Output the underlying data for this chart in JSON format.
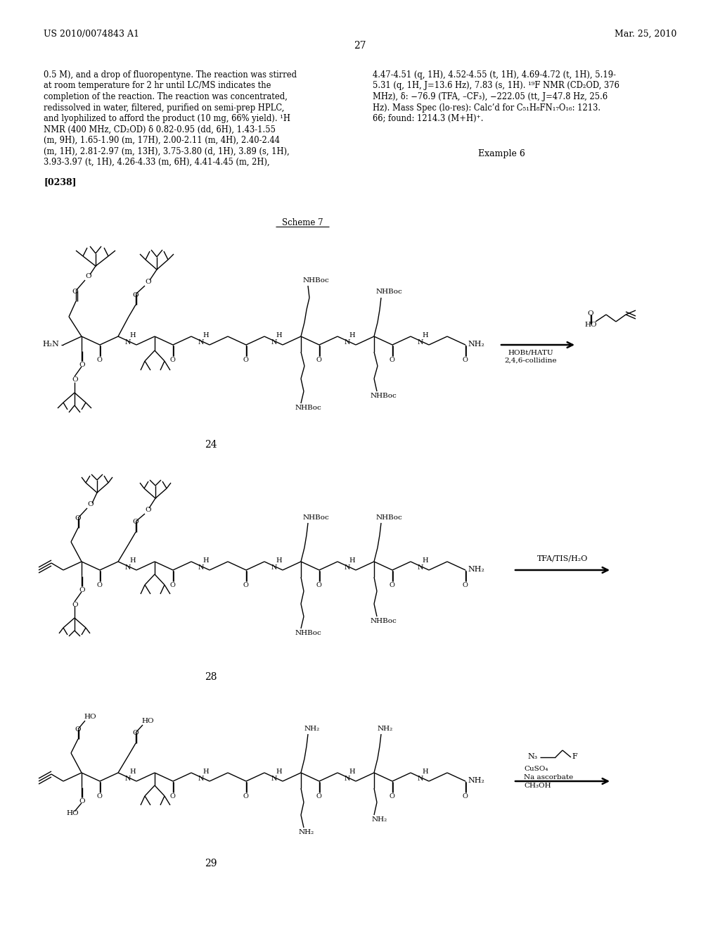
{
  "background_color": "#ffffff",
  "page_number": "27",
  "header_left": "US 2010/0074843 A1",
  "header_right": "Mar. 25, 2010",
  "left_text_lines": [
    "0.5 M), and a drop of fluoropentyne. The reaction was stirred",
    "at room temperature for 2 hr until LC/MS indicates the",
    "completion of the reaction. The reaction was concentrated,",
    "redissolved in water, filtered, purified on semi-prep HPLC,",
    "and lyophilized to afford the product (10 mg, 66% yield). ¹H",
    "NMR (400 MHz, CD₂OD) δ 0.82-0.95 (dd, 6H), 1.43-1.55",
    "(m, 9H), 1.65-1.90 (m, 17H), 2.00-2.11 (m, 4H), 2.40-2.44",
    "(m, 1H), 2.81-2.97 (m, 13H), 3.75-3.80 (d, 1H), 3.89 (s, 1H),",
    "3.93-3.97 (t, 1H), 4.26-4.33 (m, 6H), 4.41-4.45 (m, 2H),"
  ],
  "right_text_lines": [
    "4.47-4.51 (q, 1H), 4.52-4.55 (t, 1H), 4.69-4.72 (t, 1H), 5.19-",
    "5.31 (q, 1H, J=13.6 Hz), 7.83 (s, 1H). ¹⁹F NMR (CD₂OD, 376",
    "MHz), δ: −76.9 (TFA, –CF₃), −222.05 (tt, J=47.8 Hz, 25.6",
    "Hz). Mass Spec (lo-res): Calc’d for C₅₁H₈FN₁₇O₁₆: 1213.",
    "66; found: 1214.3 (M+H)⁺."
  ],
  "example6": "Example 6",
  "ref_num": "[0238]",
  "scheme7_label": "Scheme 7",
  "compound24_label": "24",
  "compound28_label": "28",
  "compound29_label": "29",
  "arrow1_label_line1": "HOBt/HATU",
  "arrow1_label_line2": "2,4,6-collidine",
  "arrow2_label": "TFA/TIS/H₂O",
  "arrow3_label_line1": "N₃         F",
  "arrow3_label_line2": "CuSO₄",
  "arrow3_label_line3": "Na ascorbate",
  "arrow3_label_line4": "CH₃OH"
}
